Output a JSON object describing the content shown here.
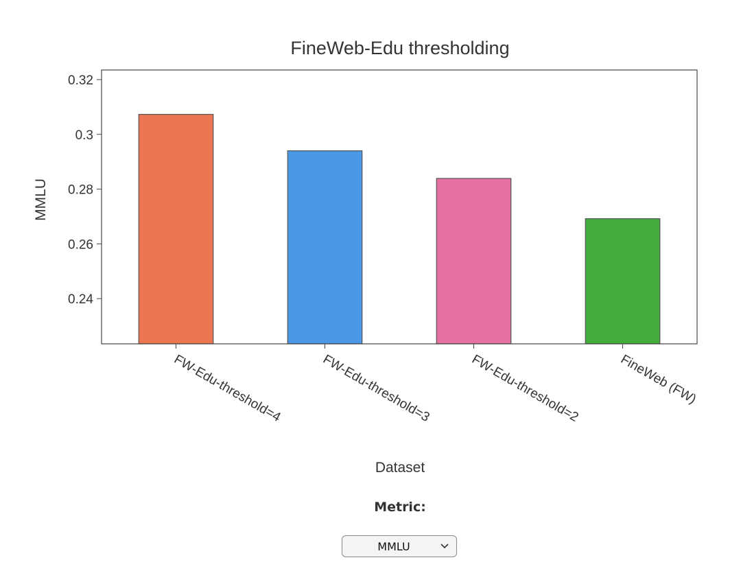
{
  "chart_data": {
    "type": "bar",
    "title": "FineWeb-Edu thresholding",
    "xlabel": "Dataset",
    "ylabel": "MMLU",
    "categories": [
      "FW-Edu-threshold=4",
      "FW-Edu-threshold=3",
      "FW-Edu-threshold=2",
      "FineWeb (FW)"
    ],
    "values": [
      0.3073,
      0.294,
      0.2839,
      0.2692
    ],
    "colors": [
      "#EB7752",
      "#4A98E6",
      "#E571A2",
      "#43AC3C"
    ],
    "ylim": [
      0.2235,
      0.3235
    ],
    "yticks": [
      0.24,
      0.26,
      0.28,
      0.3,
      0.32
    ],
    "ytick_labels": [
      "0.24",
      "0.26",
      "0.28",
      "0.3",
      "0.32"
    ],
    "grid": false,
    "legend": "none"
  },
  "controls": {
    "metric_label": "Metric:",
    "metric_selected": "MMLU",
    "dropdown_icon": "chevron-down-icon"
  }
}
